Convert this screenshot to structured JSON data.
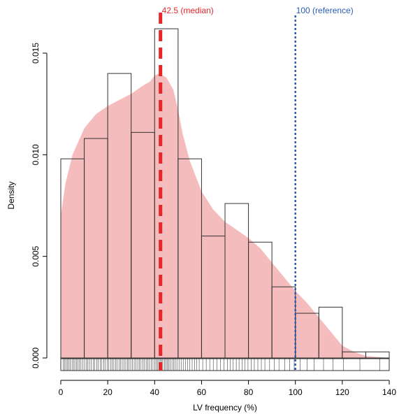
{
  "chart_data": {
    "type": "histogram",
    "title": "",
    "xlabel": "LV frequency (%)",
    "ylabel": "Density",
    "xlim": [
      0,
      140
    ],
    "ylim": [
      0,
      0.016
    ],
    "xticks": [
      "0",
      "20",
      "40",
      "60",
      "80",
      "100",
      "120",
      "140"
    ],
    "yticks": [
      "0.000",
      "0.005",
      "0.010",
      "0.015"
    ],
    "histogram": {
      "bins": [
        {
          "x0": 0,
          "x1": 10,
          "density": 0.0098
        },
        {
          "x0": 10,
          "x1": 20,
          "density": 0.0108
        },
        {
          "x0": 20,
          "x1": 30,
          "density": 0.014
        },
        {
          "x0": 30,
          "x1": 40,
          "density": 0.0111
        },
        {
          "x0": 40,
          "x1": 50,
          "density": 0.0162
        },
        {
          "x0": 50,
          "x1": 60,
          "density": 0.0098
        },
        {
          "x0": 60,
          "x1": 70,
          "density": 0.006
        },
        {
          "x0": 70,
          "x1": 80,
          "density": 0.0076
        },
        {
          "x0": 80,
          "x1": 90,
          "density": 0.0057
        },
        {
          "x0": 90,
          "x1": 100,
          "density": 0.0035
        },
        {
          "x0": 100,
          "x1": 110,
          "density": 0.0022
        },
        {
          "x0": 110,
          "x1": 120,
          "density": 0.0025
        },
        {
          "x0": 120,
          "x1": 130,
          "density": 0.0003
        },
        {
          "x0": 130,
          "x1": 140,
          "density": 0.0003
        }
      ]
    },
    "density_curve": {
      "color": "#f4bcbc",
      "points": [
        [
          0,
          0.007
        ],
        [
          2,
          0.0086
        ],
        [
          5,
          0.01
        ],
        [
          10,
          0.0113
        ],
        [
          15,
          0.012
        ],
        [
          20,
          0.0124
        ],
        [
          25,
          0.0127
        ],
        [
          30,
          0.013
        ],
        [
          35,
          0.0134
        ],
        [
          38,
          0.0136
        ],
        [
          40,
          0.0139
        ],
        [
          42,
          0.014
        ],
        [
          45,
          0.0138
        ],
        [
          48,
          0.0132
        ],
        [
          50,
          0.0122
        ],
        [
          52,
          0.011
        ],
        [
          55,
          0.0097
        ],
        [
          60,
          0.0082
        ],
        [
          65,
          0.0073
        ],
        [
          70,
          0.0067
        ],
        [
          75,
          0.0063
        ],
        [
          80,
          0.0059
        ],
        [
          85,
          0.0054
        ],
        [
          90,
          0.0047
        ],
        [
          95,
          0.004
        ],
        [
          100,
          0.0033
        ],
        [
          105,
          0.0027
        ],
        [
          110,
          0.002
        ],
        [
          115,
          0.0013
        ],
        [
          120,
          0.0006
        ],
        [
          125,
          0.0003
        ],
        [
          130,
          0.0001
        ],
        [
          140,
          0.0
        ],
        [
          143,
          0.0
        ]
      ]
    },
    "rug": {
      "values": [
        1,
        1.6,
        2.2,
        2.8,
        3.4,
        4,
        4.8,
        5.4,
        6,
        6.7,
        7.3,
        8,
        8.6,
        9.3,
        10.1,
        10.8,
        11.5,
        12.2,
        13,
        13.8,
        14.5,
        15.3,
        16,
        16.8,
        17.5,
        18.3,
        19,
        19.8,
        20.4,
        21.2,
        21.9,
        22.6,
        23.3,
        24,
        24.8,
        25.5,
        26.2,
        27,
        27.7,
        28.4,
        29.1,
        29.8,
        30.6,
        31.3,
        32,
        32.8,
        33.5,
        34.2,
        35,
        35.7,
        36.4,
        37.1,
        37.8,
        38.6,
        39.3,
        40,
        40.6,
        41.2,
        41.8,
        42.4,
        43,
        43.5,
        44.2,
        44.8,
        45.4,
        46,
        46.7,
        47.4,
        48.1,
        48.8,
        49.5,
        50.4,
        51.3,
        52.2,
        53.1,
        54,
        55,
        56,
        57,
        58,
        59,
        60.5,
        62,
        63.5,
        65,
        66.5,
        68,
        69.5,
        71,
        72.3,
        73.5,
        74.8,
        76,
        77.3,
        78.5,
        79.8,
        81.2,
        82.5,
        84,
        85.5,
        87,
        89,
        91,
        93,
        95.5,
        97.5,
        99.5,
        102,
        105,
        108,
        112,
        116,
        120.5,
        127.5,
        136
      ],
      "color": "#000000"
    },
    "median": {
      "value": 42.5,
      "label": "42.5  (median)",
      "color": "#e8262a"
    },
    "reference": {
      "value": 100,
      "label": "100 (reference)",
      "color": "#2a5cb8"
    }
  }
}
